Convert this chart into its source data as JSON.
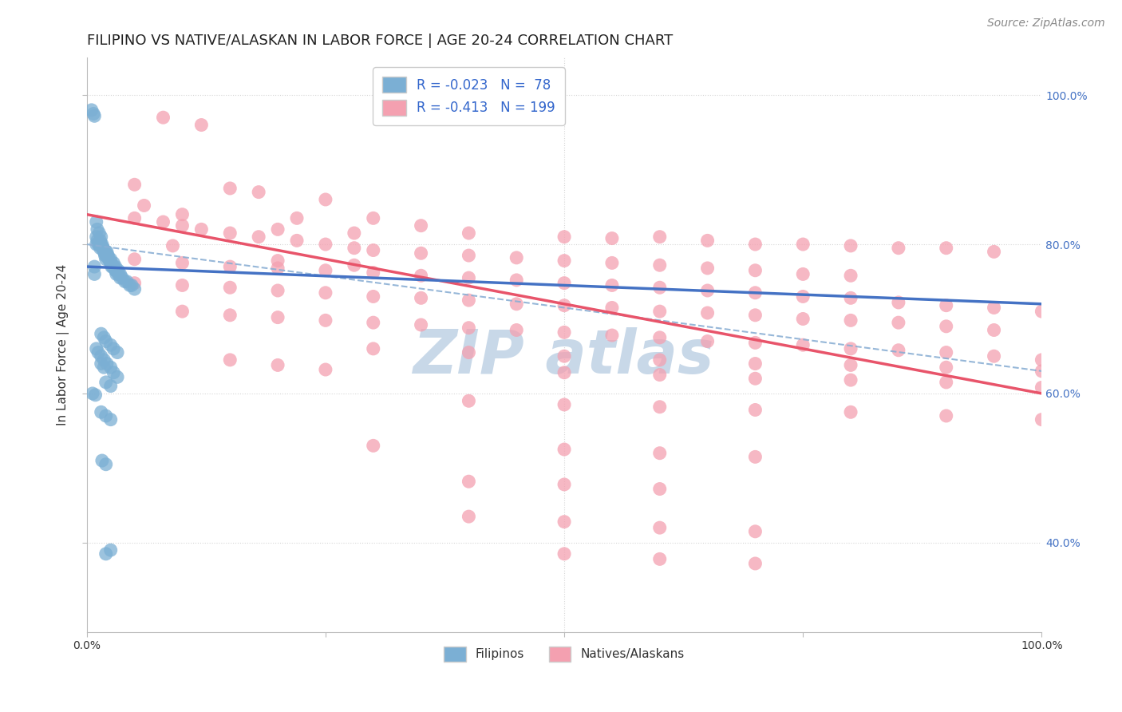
{
  "title": "FILIPINO VS NATIVE/ALASKAN IN LABOR FORCE | AGE 20-24 CORRELATION CHART",
  "source": "Source: ZipAtlas.com",
  "ylabel": "In Labor Force | Age 20-24",
  "xmin": 0.0,
  "xmax": 1.0,
  "ymin": 0.28,
  "ymax": 1.05,
  "filipino_R": -0.023,
  "filipino_N": 78,
  "native_R": -0.413,
  "native_N": 199,
  "filipino_color": "#7BAFD4",
  "native_color": "#F4A0B0",
  "filipino_line_color": "#4472C4",
  "native_line_color": "#E8546A",
  "dashed_line_color": "#8BAFD4",
  "background_color": "#FFFFFF",
  "watermark_color": "#C8D8E8",
  "grid_color": "#CCCCCC",
  "title_fontsize": 13,
  "source_fontsize": 10,
  "axis_label_fontsize": 11,
  "tick_fontsize": 10,
  "fil_line_x0": 0.0,
  "fil_line_y0": 0.77,
  "fil_line_x1": 1.0,
  "fil_line_y1": 0.72,
  "nat_line_x0": 0.0,
  "nat_line_y0": 0.84,
  "nat_line_x1": 1.0,
  "nat_line_y1": 0.6,
  "dash_line_x0": 0.0,
  "dash_line_y0": 0.8,
  "dash_line_x1": 1.0,
  "dash_line_y1": 0.63,
  "filipino_points": [
    [
      0.005,
      0.98
    ],
    [
      0.007,
      0.975
    ],
    [
      0.008,
      0.972
    ],
    [
      0.01,
      0.83
    ],
    [
      0.01,
      0.8
    ],
    [
      0.011,
      0.82
    ],
    [
      0.013,
      0.815
    ],
    [
      0.014,
      0.805
    ],
    [
      0.015,
      0.81
    ],
    [
      0.016,
      0.8
    ],
    [
      0.017,
      0.795
    ],
    [
      0.018,
      0.79
    ],
    [
      0.019,
      0.785
    ],
    [
      0.02,
      0.78
    ],
    [
      0.021,
      0.79
    ],
    [
      0.022,
      0.785
    ],
    [
      0.023,
      0.78
    ],
    [
      0.025,
      0.775
    ],
    [
      0.026,
      0.77
    ],
    [
      0.028,
      0.77
    ],
    [
      0.03,
      0.765
    ],
    [
      0.031,
      0.76
    ],
    [
      0.033,
      0.76
    ],
    [
      0.035,
      0.755
    ],
    [
      0.037,
      0.755
    ],
    [
      0.04,
      0.75
    ],
    [
      0.042,
      0.75
    ],
    [
      0.045,
      0.745
    ],
    [
      0.047,
      0.745
    ],
    [
      0.05,
      0.74
    ],
    [
      0.01,
      0.81
    ],
    [
      0.011,
      0.805
    ],
    [
      0.013,
      0.8
    ],
    [
      0.015,
      0.8
    ],
    [
      0.017,
      0.795
    ],
    [
      0.02,
      0.79
    ],
    [
      0.022,
      0.785
    ],
    [
      0.025,
      0.78
    ],
    [
      0.028,
      0.775
    ],
    [
      0.03,
      0.77
    ],
    [
      0.012,
      0.8
    ],
    [
      0.014,
      0.795
    ],
    [
      0.016,
      0.795
    ],
    [
      0.018,
      0.79
    ],
    [
      0.02,
      0.785
    ],
    [
      0.023,
      0.78
    ],
    [
      0.025,
      0.775
    ],
    [
      0.027,
      0.77
    ],
    [
      0.03,
      0.765
    ],
    [
      0.033,
      0.765
    ],
    [
      0.035,
      0.76
    ],
    [
      0.015,
      0.68
    ],
    [
      0.018,
      0.675
    ],
    [
      0.02,
      0.67
    ],
    [
      0.025,
      0.665
    ],
    [
      0.028,
      0.66
    ],
    [
      0.032,
      0.655
    ],
    [
      0.015,
      0.64
    ],
    [
      0.018,
      0.635
    ],
    [
      0.02,
      0.615
    ],
    [
      0.025,
      0.61
    ],
    [
      0.01,
      0.66
    ],
    [
      0.012,
      0.655
    ],
    [
      0.015,
      0.65
    ],
    [
      0.018,
      0.645
    ],
    [
      0.021,
      0.64
    ],
    [
      0.025,
      0.635
    ],
    [
      0.028,
      0.628
    ],
    [
      0.032,
      0.622
    ],
    [
      0.006,
      0.6
    ],
    [
      0.009,
      0.598
    ],
    [
      0.015,
      0.575
    ],
    [
      0.02,
      0.57
    ],
    [
      0.025,
      0.565
    ],
    [
      0.008,
      0.76
    ],
    [
      0.008,
      0.77
    ],
    [
      0.016,
      0.51
    ],
    [
      0.02,
      0.505
    ],
    [
      0.02,
      0.385
    ],
    [
      0.025,
      0.39
    ]
  ],
  "native_points": [
    [
      0.08,
      0.97
    ],
    [
      0.12,
      0.96
    ],
    [
      0.05,
      0.88
    ],
    [
      0.15,
      0.875
    ],
    [
      0.18,
      0.87
    ],
    [
      0.25,
      0.86
    ],
    [
      0.1,
      0.84
    ],
    [
      0.22,
      0.835
    ],
    [
      0.3,
      0.835
    ],
    [
      0.35,
      0.825
    ],
    [
      0.2,
      0.82
    ],
    [
      0.28,
      0.815
    ],
    [
      0.4,
      0.815
    ],
    [
      0.5,
      0.81
    ],
    [
      0.55,
      0.808
    ],
    [
      0.6,
      0.81
    ],
    [
      0.65,
      0.805
    ],
    [
      0.7,
      0.8
    ],
    [
      0.75,
      0.8
    ],
    [
      0.8,
      0.798
    ],
    [
      0.85,
      0.795
    ],
    [
      0.9,
      0.795
    ],
    [
      0.95,
      0.79
    ],
    [
      0.05,
      0.835
    ],
    [
      0.08,
      0.83
    ],
    [
      0.1,
      0.825
    ],
    [
      0.12,
      0.82
    ],
    [
      0.15,
      0.815
    ],
    [
      0.18,
      0.81
    ],
    [
      0.22,
      0.805
    ],
    [
      0.25,
      0.8
    ],
    [
      0.28,
      0.795
    ],
    [
      0.3,
      0.792
    ],
    [
      0.35,
      0.788
    ],
    [
      0.4,
      0.785
    ],
    [
      0.45,
      0.782
    ],
    [
      0.5,
      0.778
    ],
    [
      0.55,
      0.775
    ],
    [
      0.6,
      0.772
    ],
    [
      0.65,
      0.768
    ],
    [
      0.7,
      0.765
    ],
    [
      0.75,
      0.76
    ],
    [
      0.8,
      0.758
    ],
    [
      0.05,
      0.78
    ],
    [
      0.1,
      0.775
    ],
    [
      0.15,
      0.77
    ],
    [
      0.2,
      0.768
    ],
    [
      0.25,
      0.765
    ],
    [
      0.3,
      0.762
    ],
    [
      0.35,
      0.758
    ],
    [
      0.4,
      0.755
    ],
    [
      0.45,
      0.752
    ],
    [
      0.5,
      0.748
    ],
    [
      0.55,
      0.745
    ],
    [
      0.6,
      0.742
    ],
    [
      0.65,
      0.738
    ],
    [
      0.7,
      0.735
    ],
    [
      0.75,
      0.73
    ],
    [
      0.8,
      0.728
    ],
    [
      0.85,
      0.722
    ],
    [
      0.9,
      0.718
    ],
    [
      0.95,
      0.715
    ],
    [
      1.0,
      0.71
    ],
    [
      0.05,
      0.748
    ],
    [
      0.1,
      0.745
    ],
    [
      0.15,
      0.742
    ],
    [
      0.2,
      0.738
    ],
    [
      0.25,
      0.735
    ],
    [
      0.3,
      0.73
    ],
    [
      0.35,
      0.728
    ],
    [
      0.4,
      0.725
    ],
    [
      0.45,
      0.72
    ],
    [
      0.5,
      0.718
    ],
    [
      0.55,
      0.715
    ],
    [
      0.6,
      0.71
    ],
    [
      0.65,
      0.708
    ],
    [
      0.7,
      0.705
    ],
    [
      0.75,
      0.7
    ],
    [
      0.8,
      0.698
    ],
    [
      0.85,
      0.695
    ],
    [
      0.9,
      0.69
    ],
    [
      0.95,
      0.685
    ],
    [
      0.1,
      0.71
    ],
    [
      0.15,
      0.705
    ],
    [
      0.2,
      0.702
    ],
    [
      0.25,
      0.698
    ],
    [
      0.3,
      0.695
    ],
    [
      0.35,
      0.692
    ],
    [
      0.4,
      0.688
    ],
    [
      0.45,
      0.685
    ],
    [
      0.5,
      0.682
    ],
    [
      0.55,
      0.678
    ],
    [
      0.6,
      0.675
    ],
    [
      0.65,
      0.67
    ],
    [
      0.7,
      0.668
    ],
    [
      0.75,
      0.665
    ],
    [
      0.8,
      0.66
    ],
    [
      0.85,
      0.658
    ],
    [
      0.9,
      0.655
    ],
    [
      0.95,
      0.65
    ],
    [
      1.0,
      0.645
    ],
    [
      0.3,
      0.66
    ],
    [
      0.4,
      0.655
    ],
    [
      0.5,
      0.65
    ],
    [
      0.6,
      0.645
    ],
    [
      0.7,
      0.64
    ],
    [
      0.8,
      0.638
    ],
    [
      0.9,
      0.635
    ],
    [
      1.0,
      0.63
    ],
    [
      0.5,
      0.628
    ],
    [
      0.6,
      0.625
    ],
    [
      0.7,
      0.62
    ],
    [
      0.8,
      0.618
    ],
    [
      0.9,
      0.615
    ],
    [
      1.0,
      0.608
    ],
    [
      0.4,
      0.59
    ],
    [
      0.5,
      0.585
    ],
    [
      0.6,
      0.582
    ],
    [
      0.7,
      0.578
    ],
    [
      0.8,
      0.575
    ],
    [
      0.9,
      0.57
    ],
    [
      1.0,
      0.565
    ],
    [
      0.3,
      0.53
    ],
    [
      0.5,
      0.525
    ],
    [
      0.6,
      0.52
    ],
    [
      0.7,
      0.515
    ],
    [
      0.4,
      0.482
    ],
    [
      0.5,
      0.478
    ],
    [
      0.6,
      0.472
    ],
    [
      0.4,
      0.435
    ],
    [
      0.5,
      0.428
    ],
    [
      0.6,
      0.42
    ],
    [
      0.7,
      0.415
    ],
    [
      0.5,
      0.385
    ],
    [
      0.6,
      0.378
    ],
    [
      0.7,
      0.372
    ],
    [
      0.15,
      0.645
    ],
    [
      0.2,
      0.638
    ],
    [
      0.25,
      0.632
    ],
    [
      0.06,
      0.852
    ],
    [
      0.09,
      0.798
    ],
    [
      0.2,
      0.778
    ],
    [
      0.28,
      0.772
    ]
  ]
}
